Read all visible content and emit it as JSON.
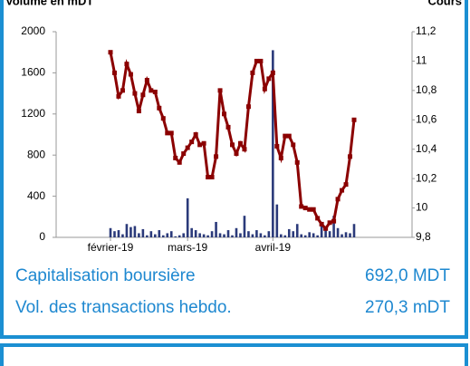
{
  "chart_data": {
    "type": "bar_line",
    "ylabel": "Volume en mDT",
    "y2label": "Cours",
    "categories": [
      "février-19",
      null,
      null,
      null,
      null,
      null,
      null,
      null,
      null,
      null,
      null,
      null,
      null,
      null,
      null,
      null,
      null,
      null,
      null,
      "mars-19",
      null,
      null,
      null,
      null,
      null,
      null,
      null,
      null,
      null,
      null,
      null,
      null,
      null,
      null,
      null,
      null,
      null,
      null,
      null,
      null,
      "avril-19",
      null,
      null,
      null,
      null,
      null,
      null,
      null,
      null,
      null,
      null,
      null,
      null,
      null,
      null,
      null,
      null,
      null,
      null,
      null,
      null
    ],
    "series": [
      {
        "color": "#2b3a7a",
        "values": [
          90,
          60,
          70,
          30,
          130,
          100,
          110,
          40,
          80,
          20,
          60,
          30,
          70,
          20,
          40,
          60,
          10,
          20,
          40,
          380,
          90,
          70,
          40,
          30,
          20,
          60,
          150,
          40,
          30,
          70,
          20,
          90,
          40,
          210,
          60,
          30,
          70,
          40,
          20,
          60,
          1820,
          320,
          30,
          20,
          80,
          60,
          130,
          30,
          20,
          50,
          40,
          20,
          150,
          80,
          60,
          210,
          90,
          30,
          50,
          40,
          130
        ]
      },
      {
        "color": "#8b0000",
        "axis": "y2",
        "values": [
          11.06,
          10.92,
          10.76,
          10.8,
          10.98,
          10.91,
          10.78,
          10.66,
          10.77,
          10.87,
          10.8,
          10.79,
          10.68,
          10.61,
          10.51,
          10.51,
          10.34,
          10.31,
          10.37,
          10.41,
          10.45,
          10.5,
          10.43,
          10.44,
          10.21,
          10.21,
          10.35,
          10.8,
          10.64,
          10.55,
          10.43,
          10.37,
          10.44,
          10.4,
          10.69,
          10.92,
          11.0,
          11.0,
          10.81,
          10.88,
          10.92,
          10.42,
          10.34,
          10.49,
          10.49,
          10.43,
          10.31,
          10.01,
          10.0,
          9.99,
          9.99,
          9.93,
          9.89,
          9.86,
          9.9,
          9.91,
          10.06,
          10.12,
          10.16,
          10.35,
          10.6
        ]
      }
    ],
    "ylim": [
      0,
      2000
    ],
    "yticks": [
      0,
      400,
      800,
      1200,
      1600,
      2000
    ],
    "y2lim": [
      9.8,
      11.2
    ],
    "y2ticks": [
      {
        "value": 9.8,
        "label": "9,8"
      },
      10,
      {
        "value": 10.2,
        "label": "10,2"
      },
      {
        "value": 10.4,
        "label": "10,4"
      },
      {
        "value": 10.6,
        "label": "10,6"
      },
      {
        "value": 10.8,
        "label": "10,8"
      },
      11,
      {
        "value": 11.2,
        "label": "11,2"
      }
    ]
  },
  "info": [
    {
      "label": "Capitalisation boursière",
      "value": "692,0 MDT"
    },
    {
      "label": "Vol. des transactions hebdo.",
      "value": "270,3 mDT"
    }
  ]
}
